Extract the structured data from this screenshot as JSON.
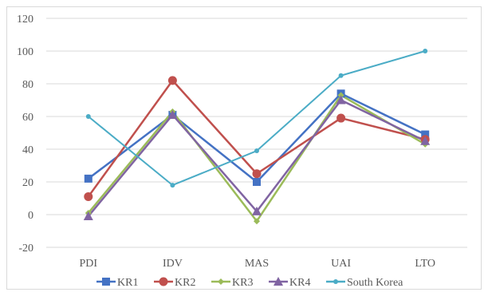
{
  "chart_data": {
    "type": "line",
    "categories": [
      "PDI",
      "IDV",
      "MAS",
      "UAI",
      "LTO"
    ],
    "ylim": [
      -20,
      120
    ],
    "yticks": [
      -20,
      0,
      20,
      40,
      60,
      80,
      100,
      120
    ],
    "grid": "horizontal",
    "legend": "bottom",
    "series": [
      {
        "name": "KR1",
        "values": [
          22,
          61,
          20,
          74,
          49
        ],
        "color": "#4472c4",
        "marker": "square"
      },
      {
        "name": "KR2",
        "values": [
          11,
          82,
          25,
          59,
          46
        ],
        "color": "#c0504d",
        "marker": "circle"
      },
      {
        "name": "KR3",
        "values": [
          1,
          63,
          -4,
          73,
          43
        ],
        "color": "#9bbb59",
        "marker": "diamond"
      },
      {
        "name": "KR4",
        "values": [
          -1,
          61,
          2,
          70,
          45
        ],
        "color": "#8064a2",
        "marker": "triangle"
      },
      {
        "name": "South Korea",
        "values": [
          60,
          18,
          39,
          85,
          100
        ],
        "color": "#4bacc6",
        "marker": "dot"
      }
    ]
  }
}
